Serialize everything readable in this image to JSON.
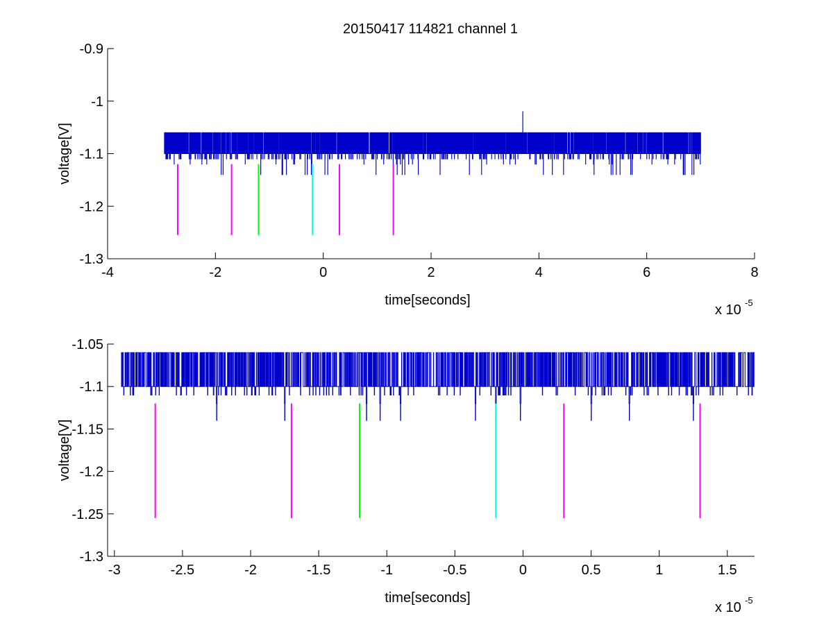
{
  "figure_title": "20150417 114821 channel 1",
  "chart_data": [
    {
      "type": "line",
      "panel": "top",
      "title": "20150417 114821 channel 1",
      "xlabel": "time[seconds]",
      "ylabel": "voltage[V]",
      "x_multiplier": "x 10",
      "x_multiplier_exponent": "-5",
      "xlim": [
        -4e-05,
        8e-05
      ],
      "ylim": [
        -1.3,
        -0.9
      ],
      "x_ticks": [
        -4e-05,
        -2e-05,
        0,
        2e-05,
        4e-05,
        6e-05,
        8e-05
      ],
      "x_tick_labels": [
        "-4",
        "-2",
        "0",
        "2",
        "4",
        "6",
        "8"
      ],
      "y_ticks": [
        -1.3,
        -1.2,
        -1.1,
        -1.0,
        -0.9
      ],
      "y_tick_labels": [
        "-1.3",
        "-1.2",
        "-1.1",
        "-1",
        "-0.9"
      ],
      "grid": false,
      "signal": {
        "color": "#0000cc",
        "x_start": -2.95e-05,
        "x_end": 7e-05,
        "baseline": -1.1,
        "high": -1.06,
        "low": -1.14,
        "spike_x": 3.7e-05,
        "spike_y": -1.02
      },
      "markers": [
        {
          "x": -2.7e-05,
          "y_top": -1.12,
          "y_bottom": -1.255,
          "color": "#ff00ff"
        },
        {
          "x": -1.7e-05,
          "y_top": -1.12,
          "y_bottom": -1.255,
          "color": "#ff00ff"
        },
        {
          "x": -1.2e-05,
          "y_top": -1.12,
          "y_bottom": -1.255,
          "color": "#00ff00"
        },
        {
          "x": -2e-06,
          "y_top": -1.12,
          "y_bottom": -1.255,
          "color": "#00ffff"
        },
        {
          "x": 3e-06,
          "y_top": -1.12,
          "y_bottom": -1.255,
          "color": "#ff00ff"
        },
        {
          "x": 1.3e-05,
          "y_top": -1.12,
          "y_bottom": -1.255,
          "color": "#ff00ff"
        }
      ]
    },
    {
      "type": "line",
      "panel": "bottom",
      "xlabel": "time[seconds]",
      "ylabel": "voltage[V]",
      "x_multiplier": "x 10",
      "x_multiplier_exponent": "-5",
      "xlim": [
        -3.05e-05,
        1.7e-05
      ],
      "ylim": [
        -1.3,
        -1.05
      ],
      "x_ticks": [
        -3e-05,
        -2.5e-05,
        -2e-05,
        -1.5e-05,
        -1e-05,
        -5e-06,
        0,
        5e-06,
        1e-05,
        1.5e-05
      ],
      "x_tick_labels": [
        "-3",
        "-2.5",
        "-2",
        "-1.5",
        "-1",
        "-0.5",
        "0",
        "0.5",
        "1",
        "1.5"
      ],
      "y_ticks": [
        -1.3,
        -1.25,
        -1.2,
        -1.15,
        -1.1,
        -1.05
      ],
      "y_tick_labels": [
        "-1.3",
        "-1.25",
        "-1.2",
        "-1.15",
        "-1.1",
        "-1.05"
      ],
      "grid": false,
      "signal": {
        "color": "#0000cc",
        "x_start": -2.95e-05,
        "x_end": 1.7e-05,
        "baseline": -1.1,
        "high": -1.06,
        "low": -1.14,
        "dips": [
          -2.25e-05,
          -1.75e-05,
          -1.15e-05,
          -1.05e-05,
          -9e-06,
          -3.5e-06,
          -2e-06,
          -2e-07,
          5e-06,
          7.8e-06,
          1.25e-05
        ]
      },
      "markers": [
        {
          "x": -2.7e-05,
          "y_top": -1.12,
          "y_bottom": -1.255,
          "color": "#ff00ff"
        },
        {
          "x": -1.7e-05,
          "y_top": -1.12,
          "y_bottom": -1.255,
          "color": "#ff00ff"
        },
        {
          "x": -1.2e-05,
          "y_top": -1.12,
          "y_bottom": -1.255,
          "color": "#00ff00"
        },
        {
          "x": -2e-06,
          "y_top": -1.12,
          "y_bottom": -1.255,
          "color": "#00ffff"
        },
        {
          "x": 3e-06,
          "y_top": -1.12,
          "y_bottom": -1.255,
          "color": "#ff00ff"
        },
        {
          "x": 1.3e-05,
          "y_top": -1.12,
          "y_bottom": -1.255,
          "color": "#ff00ff"
        }
      ]
    }
  ]
}
